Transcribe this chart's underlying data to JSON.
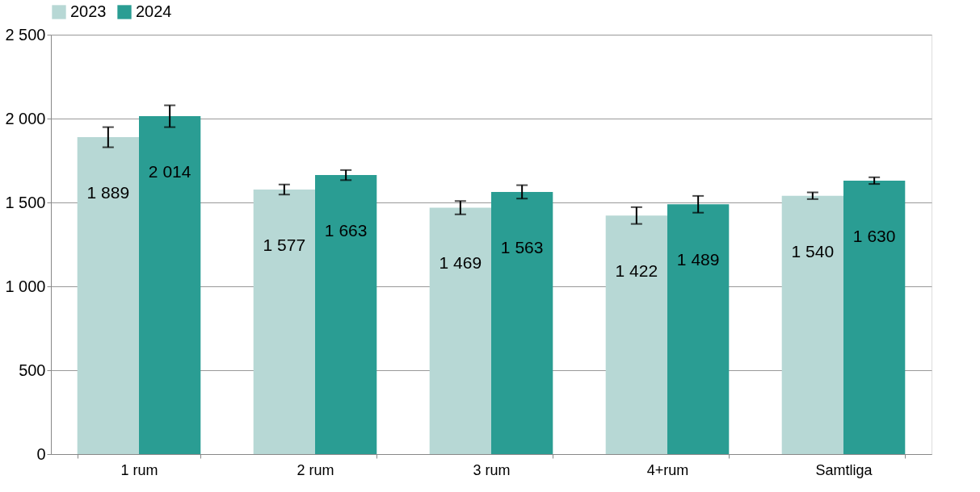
{
  "chart_data": {
    "type": "bar",
    "categories": [
      "1 rum",
      "2 rum",
      "3 rum",
      "4+rum",
      "Samtliga"
    ],
    "series": [
      {
        "name": "2023",
        "color": "#b7d8d5",
        "values": [
          1889,
          1577,
          1469,
          1422,
          1540
        ],
        "errors": [
          60,
          30,
          40,
          50,
          20
        ],
        "value_labels": [
          "1 889",
          "1 577",
          "1 469",
          "1 422",
          "1 540"
        ]
      },
      {
        "name": "2024",
        "color": "#2a9d93",
        "values": [
          2014,
          1663,
          1563,
          1489,
          1630
        ],
        "errors": [
          65,
          30,
          40,
          50,
          20
        ],
        "value_labels": [
          "2 014",
          "1 663",
          "1 563",
          "1 489",
          "1 630"
        ]
      }
    ],
    "ylim": [
      0,
      2500
    ],
    "yticks": [
      {
        "value": 0,
        "label": "0"
      },
      {
        "value": 500,
        "label": "500"
      },
      {
        "value": 1000,
        "label": "1 000"
      },
      {
        "value": 1500,
        "label": "1 500"
      },
      {
        "value": 2000,
        "label": "2 000"
      },
      {
        "value": 2500,
        "label": "2 500"
      }
    ],
    "grid": "y",
    "legend": "top"
  }
}
